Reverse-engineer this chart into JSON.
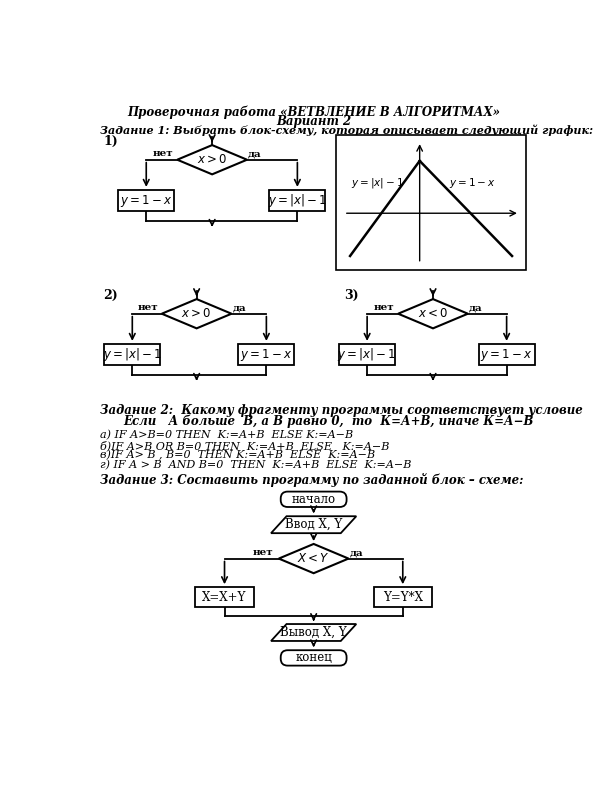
{
  "title_line1": "Проверочная работа «ВЕТВЛЕНИЕ В АЛГОРИТМАХ»",
  "title_line2": "Вариант 2",
  "task1_label": "Задание 1: Выбрать блок-схему, которая описывает следующий график:",
  "task2_label": "Задание 2:  Какому фрагменту программы соответствует условие",
  "task2_condition": "Если   А больше  В, а В равно 0,  то  К=А+В, иначе К=А−В",
  "task2_a": "а) IF A>B=0 THEN  K:=A+B  ELSE K:=A−B",
  "task2_b": "б)IF A>B OR B=0 THEN  K:=A+B  ELSE   K:=A−B",
  "task2_v": "в)IF A> B , B=0  THEN K:=A+B  ELSE  K:=A−B",
  "task2_g": "г) IF A > B  AND B=0  THEN  K:=A+B  ELSE  K:=A−B",
  "task3_label": "Задание 3: Составить программу по заданной блок – схеме:",
  "bg_color": "#ffffff",
  "text_color": "#000000"
}
